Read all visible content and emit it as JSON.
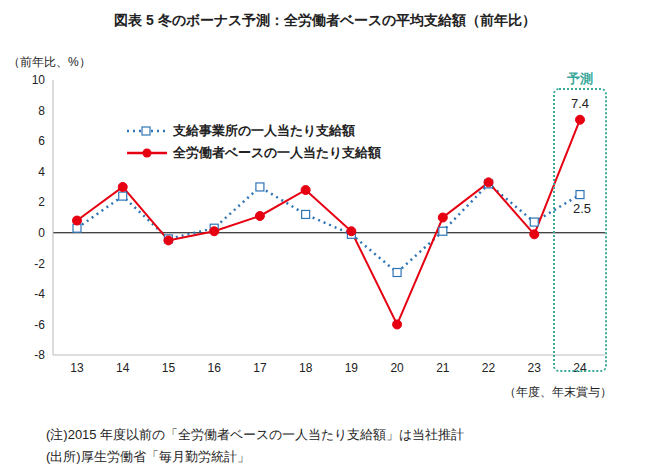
{
  "chart_data": {
    "type": "line",
    "title": "図表 5 冬のボーナス予測：全労働者ベースの平均支給額（前年比）",
    "y_label": "（前年比、%）",
    "x_label": "（年度、年末賞与）",
    "annotation": "予測",
    "notes": [
      "(注)2015 年度以前の「全労働者ベースの一人当たり支給額」は当社推計",
      "(出所)厚生労働省「毎月勤労統計」"
    ],
    "categories": [
      "13",
      "14",
      "15",
      "16",
      "17",
      "18",
      "19",
      "20",
      "21",
      "22",
      "23",
      "24"
    ],
    "series": [
      {
        "name": "支給事業所の一人当たり支給額",
        "color": "#2f75b5",
        "marker": "square",
        "line_style": "dotted",
        "values": [
          0.3,
          2.4,
          -0.4,
          0.3,
          3.0,
          1.2,
          -0.1,
          -2.6,
          0.1,
          3.2,
          0.7,
          2.5
        ],
        "value_labels": [
          null,
          null,
          null,
          null,
          null,
          null,
          null,
          null,
          null,
          null,
          null,
          "2.5"
        ]
      },
      {
        "name": "全労働者ベースの一人当たり支給額",
        "color": "#e60012",
        "marker": "circle",
        "line_style": "solid",
        "values": [
          0.8,
          3.0,
          -0.5,
          0.1,
          1.1,
          2.8,
          0.1,
          -6.0,
          1.0,
          3.3,
          -0.1,
          7.4
        ],
        "value_labels": [
          null,
          null,
          null,
          null,
          null,
          null,
          null,
          null,
          null,
          null,
          null,
          "7.4"
        ]
      }
    ],
    "ylim": [
      -8,
      10
    ],
    "yticks": [
      -8,
      -6,
      -4,
      -2,
      0,
      2,
      4,
      6,
      8,
      10
    ],
    "grid": false
  }
}
